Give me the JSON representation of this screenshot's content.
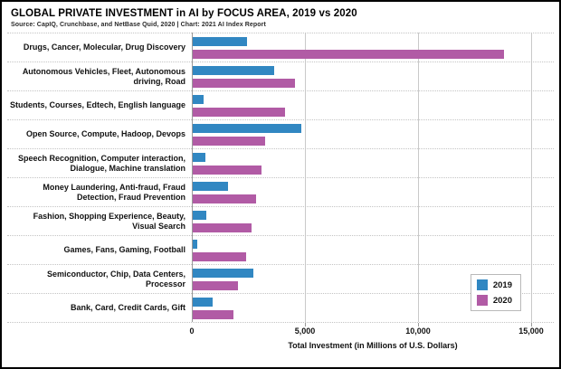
{
  "header": {
    "title": "GLOBAL PRIVATE INVESTMENT in AI by FOCUS AREA, 2019 vs 2020",
    "source": "Source: CapIQ, Crunchbase, and NetBase Quid, 2020 | Chart: 2021 AI Index Report"
  },
  "chart_data": {
    "type": "bar",
    "orientation": "horizontal",
    "title": "GLOBAL PRIVATE INVESTMENT in AI by FOCUS AREA, 2019 vs 2020",
    "xlabel": "Total Investment (in Millions of U.S. Dollars)",
    "ylabel": "",
    "xlim": [
      0,
      16000
    ],
    "grid": "vertical solid gridlines at ticks; dotted horizontal row separators",
    "legend_position": "bottom-right",
    "categories": [
      "Drugs, Cancer, Molecular, Drug Discovery",
      "Autonomous Vehicles, Fleet, Autonomous driving, Road",
      "Students, Courses, Edtech, English language",
      "Open Source, Compute, Hadoop, Devops",
      "Speech Recognition, Computer interaction, Dialogue, Machine translation",
      "Money Laundering, Anti-fraud, Fraud Detection, Fraud Prevention",
      "Fashion, Shopping Experience, Beauty, Visual Search",
      "Games, Fans, Gaming, Football",
      "Semiconductor, Chip, Data Centers, Processor",
      "Bank, Card, Credit Cards, Gift"
    ],
    "series": [
      {
        "name": "2019",
        "color": "#3187c2",
        "values": [
          2400,
          3600,
          500,
          4800,
          550,
          1550,
          600,
          200,
          2700,
          900
        ]
      },
      {
        "name": "2020",
        "color": "#b15ba5",
        "values": [
          13800,
          4550,
          4100,
          3200,
          3050,
          2800,
          2600,
          2350,
          2000,
          1800
        ]
      }
    ],
    "xticks": [
      {
        "value": 0,
        "label": "0"
      },
      {
        "value": 5000,
        "label": "5,000"
      },
      {
        "value": 10000,
        "label": "10,000"
      },
      {
        "value": 15000,
        "label": "15,000"
      }
    ],
    "colors": {
      "blue_2019": "#3187c2",
      "magenta_2020": "#b15ba5"
    }
  }
}
